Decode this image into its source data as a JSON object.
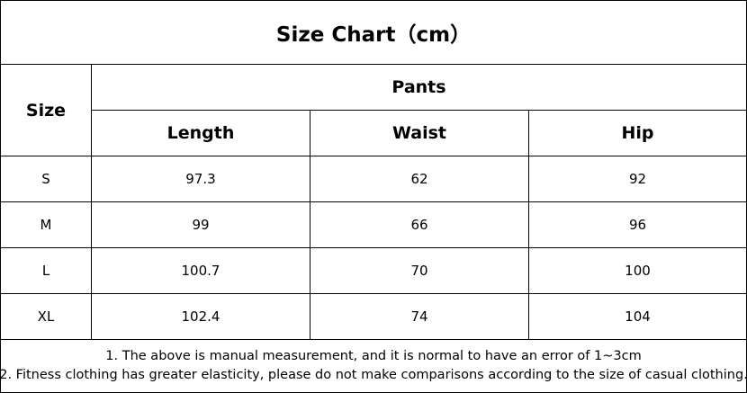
{
  "title": "Size Chart（cm）",
  "table": {
    "size_header": "Size",
    "group_header": "Pants",
    "columns": [
      "Length",
      "Waist",
      "Hip"
    ],
    "rows": [
      [
        "S",
        97.3,
        62,
        92
      ],
      [
        "M",
        99,
        66,
        96
      ],
      [
        "L",
        100.7,
        70,
        100
      ],
      [
        "XL",
        102.4,
        74,
        104
      ]
    ]
  },
  "notes": [
    "1. The above is manual measurement, and it is normal to have an error of 1~3cm",
    "2. Fitness clothing has greater elasticity, please do not make comparisons according to the size of casual clothing."
  ]
}
